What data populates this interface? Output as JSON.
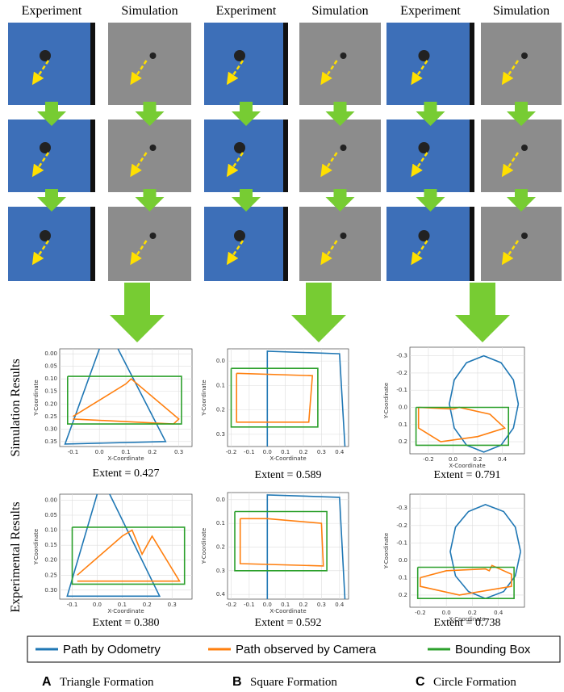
{
  "column_headers": [
    "Experiment",
    "Simulation",
    "Experiment",
    "Simulation",
    "Experiment",
    "Simulation"
  ],
  "row_labels": [
    "Simulation Results",
    "Experimental Results"
  ],
  "legend": [
    {
      "label": "Path by Odometry",
      "color": "#1f77b4"
    },
    {
      "label": "Path observed by Camera",
      "color": "#ff7f0e"
    },
    {
      "label": "Bounding Box",
      "color": "#2ca02c"
    }
  ],
  "captions": [
    {
      "letter": "A",
      "text": "Triangle Formation"
    },
    {
      "letter": "B",
      "text": "Square Formation"
    },
    {
      "letter": "C",
      "text": "Circle Formation"
    }
  ],
  "plots": [
    {
      "type": "line",
      "x_label": "X-Coordinate",
      "y_label": "Y-Coordinate",
      "extent": "Extent = 0.427",
      "xlim": [
        -0.15,
        0.35
      ],
      "ylim": [
        0.37,
        -0.02
      ],
      "xticks": [
        -0.1,
        {
          "value": 0,
          "label": "0.0"
        },
        0.1,
        0.2,
        0.3
      ],
      "yticks": [
        {
          "value": 0,
          "label": "0.00"
        },
        0.05,
        {
          "value": 0.1,
          "label": "0.10"
        },
        0.15,
        {
          "value": 0.2,
          "label": "0.20"
        },
        0.25,
        {
          "value": 0.3,
          "label": "0.30"
        },
        0.35
      ],
      "series": [
        {
          "color": "#1f77b4",
          "x": [
            0.07,
            0.25,
            -0.13,
            0.0
          ],
          "values": [
            -0.02,
            0.35,
            0.36,
            -0.02
          ]
        },
        {
          "color": "#ff7f0e",
          "x": [
            -0.1,
            0.1,
            0.12,
            0.3,
            0.28,
            -0.1
          ],
          "values": [
            0.25,
            0.12,
            0.1,
            0.26,
            0.28,
            0.26
          ]
        },
        {
          "color": "#2ca02c",
          "x": [
            -0.12,
            0.31,
            0.31,
            -0.12,
            -0.12
          ],
          "values": [
            0.09,
            0.09,
            0.28,
            0.28,
            0.09
          ]
        }
      ]
    },
    {
      "type": "line",
      "x_label": "X-Coordinate",
      "y_label": "Y-Coordinate",
      "extent": "Extent = 0.589",
      "xlim": [
        -0.22,
        0.45
      ],
      "ylim": [
        0.35,
        -0.05
      ],
      "xticks": [
        -0.2,
        -0.1,
        {
          "value": 0,
          "label": "0.0"
        },
        0.1,
        0.2,
        0.3,
        0.4
      ],
      "yticks": [
        {
          "value": 0,
          "label": "0.0"
        },
        0.1,
        0.2,
        0.3
      ],
      "series": [
        {
          "color": "#1f77b4",
          "x": [
            0.0,
            0.0,
            0.4,
            0.43
          ],
          "values": [
            0.35,
            -0.04,
            -0.03,
            0.35
          ]
        },
        {
          "color": "#ff7f0e",
          "x": [
            -0.17,
            0.25,
            0.23,
            -0.17,
            -0.17
          ],
          "values": [
            0.05,
            0.06,
            0.25,
            0.25,
            0.05
          ]
        },
        {
          "color": "#2ca02c",
          "x": [
            -0.2,
            0.28,
            0.28,
            -0.2,
            -0.2
          ],
          "values": [
            0.03,
            0.03,
            0.27,
            0.27,
            0.03
          ]
        }
      ]
    },
    {
      "type": "line",
      "x_label": "X-Coordinate",
      "y_label": "Y-Coordinate",
      "extent": "Extent = 0.791",
      "xlim": [
        -0.35,
        0.58
      ],
      "ylim": [
        0.27,
        -0.35
      ],
      "xticks": [
        -0.2,
        {
          "value": 0,
          "label": "0.0"
        },
        0.2,
        0.4
      ],
      "yticks": [
        -0.3,
        -0.2,
        -0.1,
        {
          "value": 0,
          "label": "0.0"
        },
        0.1,
        0.2
      ],
      "series": [
        {
          "color": "#1f77b4",
          "x": [
            0.53,
            0.49,
            0.39,
            0.25,
            0.11,
            0.01,
            -0.03,
            0.01,
            0.11,
            0.25,
            0.39,
            0.49,
            0.53
          ],
          "values": [
            -0.02,
            0.12,
            0.22,
            0.26,
            0.22,
            0.12,
            -0.02,
            -0.16,
            -0.26,
            -0.3,
            -0.26,
            -0.16,
            -0.02
          ]
        },
        {
          "color": "#ff7f0e",
          "x": [
            -0.28,
            0.0,
            0.05,
            0.3,
            0.42,
            0.2,
            -0.1,
            -0.28,
            -0.28
          ],
          "values": [
            0.0,
            0.01,
            0.0,
            0.04,
            0.12,
            0.17,
            0.2,
            0.12,
            0.0
          ]
        },
        {
          "color": "#2ca02c",
          "x": [
            -0.3,
            0.45,
            0.45,
            -0.3,
            -0.3
          ],
          "values": [
            0.0,
            0.0,
            0.22,
            0.22,
            0.0
          ]
        }
      ]
    },
    {
      "type": "line",
      "x_label": "X-Coordinate",
      "y_label": "Y-Coordinate",
      "extent": "Extent = 0.380",
      "xlim": [
        -0.15,
        0.38
      ],
      "ylim": [
        0.33,
        -0.02
      ],
      "xticks": [
        -0.1,
        {
          "value": 0,
          "label": "0.0"
        },
        0.1,
        0.2,
        0.3
      ],
      "yticks": [
        {
          "value": 0,
          "label": "0.00"
        },
        0.05,
        {
          "value": 0.1,
          "label": "0.10"
        },
        0.15,
        {
          "value": 0.2,
          "label": "0.20"
        },
        0.25,
        {
          "value": 0.3,
          "label": "0.30"
        }
      ],
      "series": [
        {
          "color": "#1f77b4",
          "x": [
            0.05,
            0.25,
            -0.12,
            0.0
          ],
          "values": [
            -0.02,
            0.32,
            0.32,
            -0.02
          ]
        },
        {
          "color": "#ff7f0e",
          "x": [
            -0.08,
            0.1,
            0.14,
            0.18,
            0.22,
            0.33,
            -0.08
          ],
          "values": [
            0.25,
            0.12,
            0.1,
            0.18,
            0.12,
            0.27,
            0.27
          ]
        },
        {
          "color": "#2ca02c",
          "x": [
            -0.1,
            0.35,
            0.35,
            -0.1,
            -0.1
          ],
          "values": [
            0.09,
            0.09,
            0.28,
            0.28,
            0.09
          ]
        }
      ]
    },
    {
      "type": "line",
      "x_label": "X-Coordinate",
      "y_label": "Y-Coordinate",
      "extent": "Extent = 0.592",
      "xlim": [
        -0.22,
        0.45
      ],
      "ylim": [
        0.42,
        -0.03
      ],
      "xticks": [
        -0.2,
        -0.1,
        {
          "value": 0,
          "label": "0.0"
        },
        0.1,
        0.2,
        0.3,
        0.4
      ],
      "yticks": [
        {
          "value": 0,
          "label": "0.0"
        },
        0.1,
        0.2,
        0.3,
        0.4
      ],
      "series": [
        {
          "color": "#1f77b4",
          "x": [
            0.0,
            0.0,
            0.4,
            0.43
          ],
          "values": [
            0.42,
            -0.02,
            -0.01,
            0.42
          ]
        },
        {
          "color": "#ff7f0e",
          "x": [
            -0.15,
            0.0,
            0.3,
            0.31,
            -0.15,
            -0.15
          ],
          "values": [
            0.08,
            0.08,
            0.1,
            0.28,
            0.27,
            0.08
          ]
        },
        {
          "color": "#2ca02c",
          "x": [
            -0.18,
            0.33,
            0.33,
            -0.18,
            -0.18
          ],
          "values": [
            0.05,
            0.05,
            0.3,
            0.3,
            0.05
          ]
        }
      ]
    },
    {
      "type": "line",
      "x_label": "X-Coordinate",
      "y_label": "Y-Coordinate",
      "extent": "Extent = 0.738",
      "xlim": [
        -0.28,
        0.6
      ],
      "ylim": [
        0.27,
        -0.38
      ],
      "xticks": [
        -0.2,
        {
          "value": 0,
          "label": "0.0"
        },
        0.2,
        0.4
      ],
      "yticks": [
        -0.3,
        -0.2,
        -0.1,
        {
          "value": 0,
          "label": "0.0"
        },
        0.1,
        0.2
      ],
      "series": [
        {
          "color": "#1f77b4",
          "x": [
            0.57,
            0.53,
            0.44,
            0.3,
            0.17,
            0.07,
            0.03,
            0.07,
            0.17,
            0.3,
            0.44,
            0.53,
            0.57
          ],
          "values": [
            -0.05,
            0.09,
            0.18,
            0.22,
            0.18,
            0.09,
            -0.05,
            -0.19,
            -0.28,
            -0.32,
            -0.28,
            -0.19,
            -0.05
          ]
        },
        {
          "color": "#ff7f0e",
          "x": [
            -0.2,
            0.0,
            0.3,
            0.33,
            0.35,
            0.5,
            0.5,
            0.1,
            -0.2,
            -0.2
          ],
          "values": [
            0.1,
            0.06,
            0.05,
            0.06,
            0.03,
            0.08,
            0.15,
            0.2,
            0.15,
            0.1
          ]
        },
        {
          "color": "#2ca02c",
          "x": [
            -0.22,
            0.52,
            0.52,
            -0.22,
            -0.22
          ],
          "values": [
            0.04,
            0.04,
            0.22,
            0.22,
            0.04
          ]
        }
      ]
    }
  ]
}
